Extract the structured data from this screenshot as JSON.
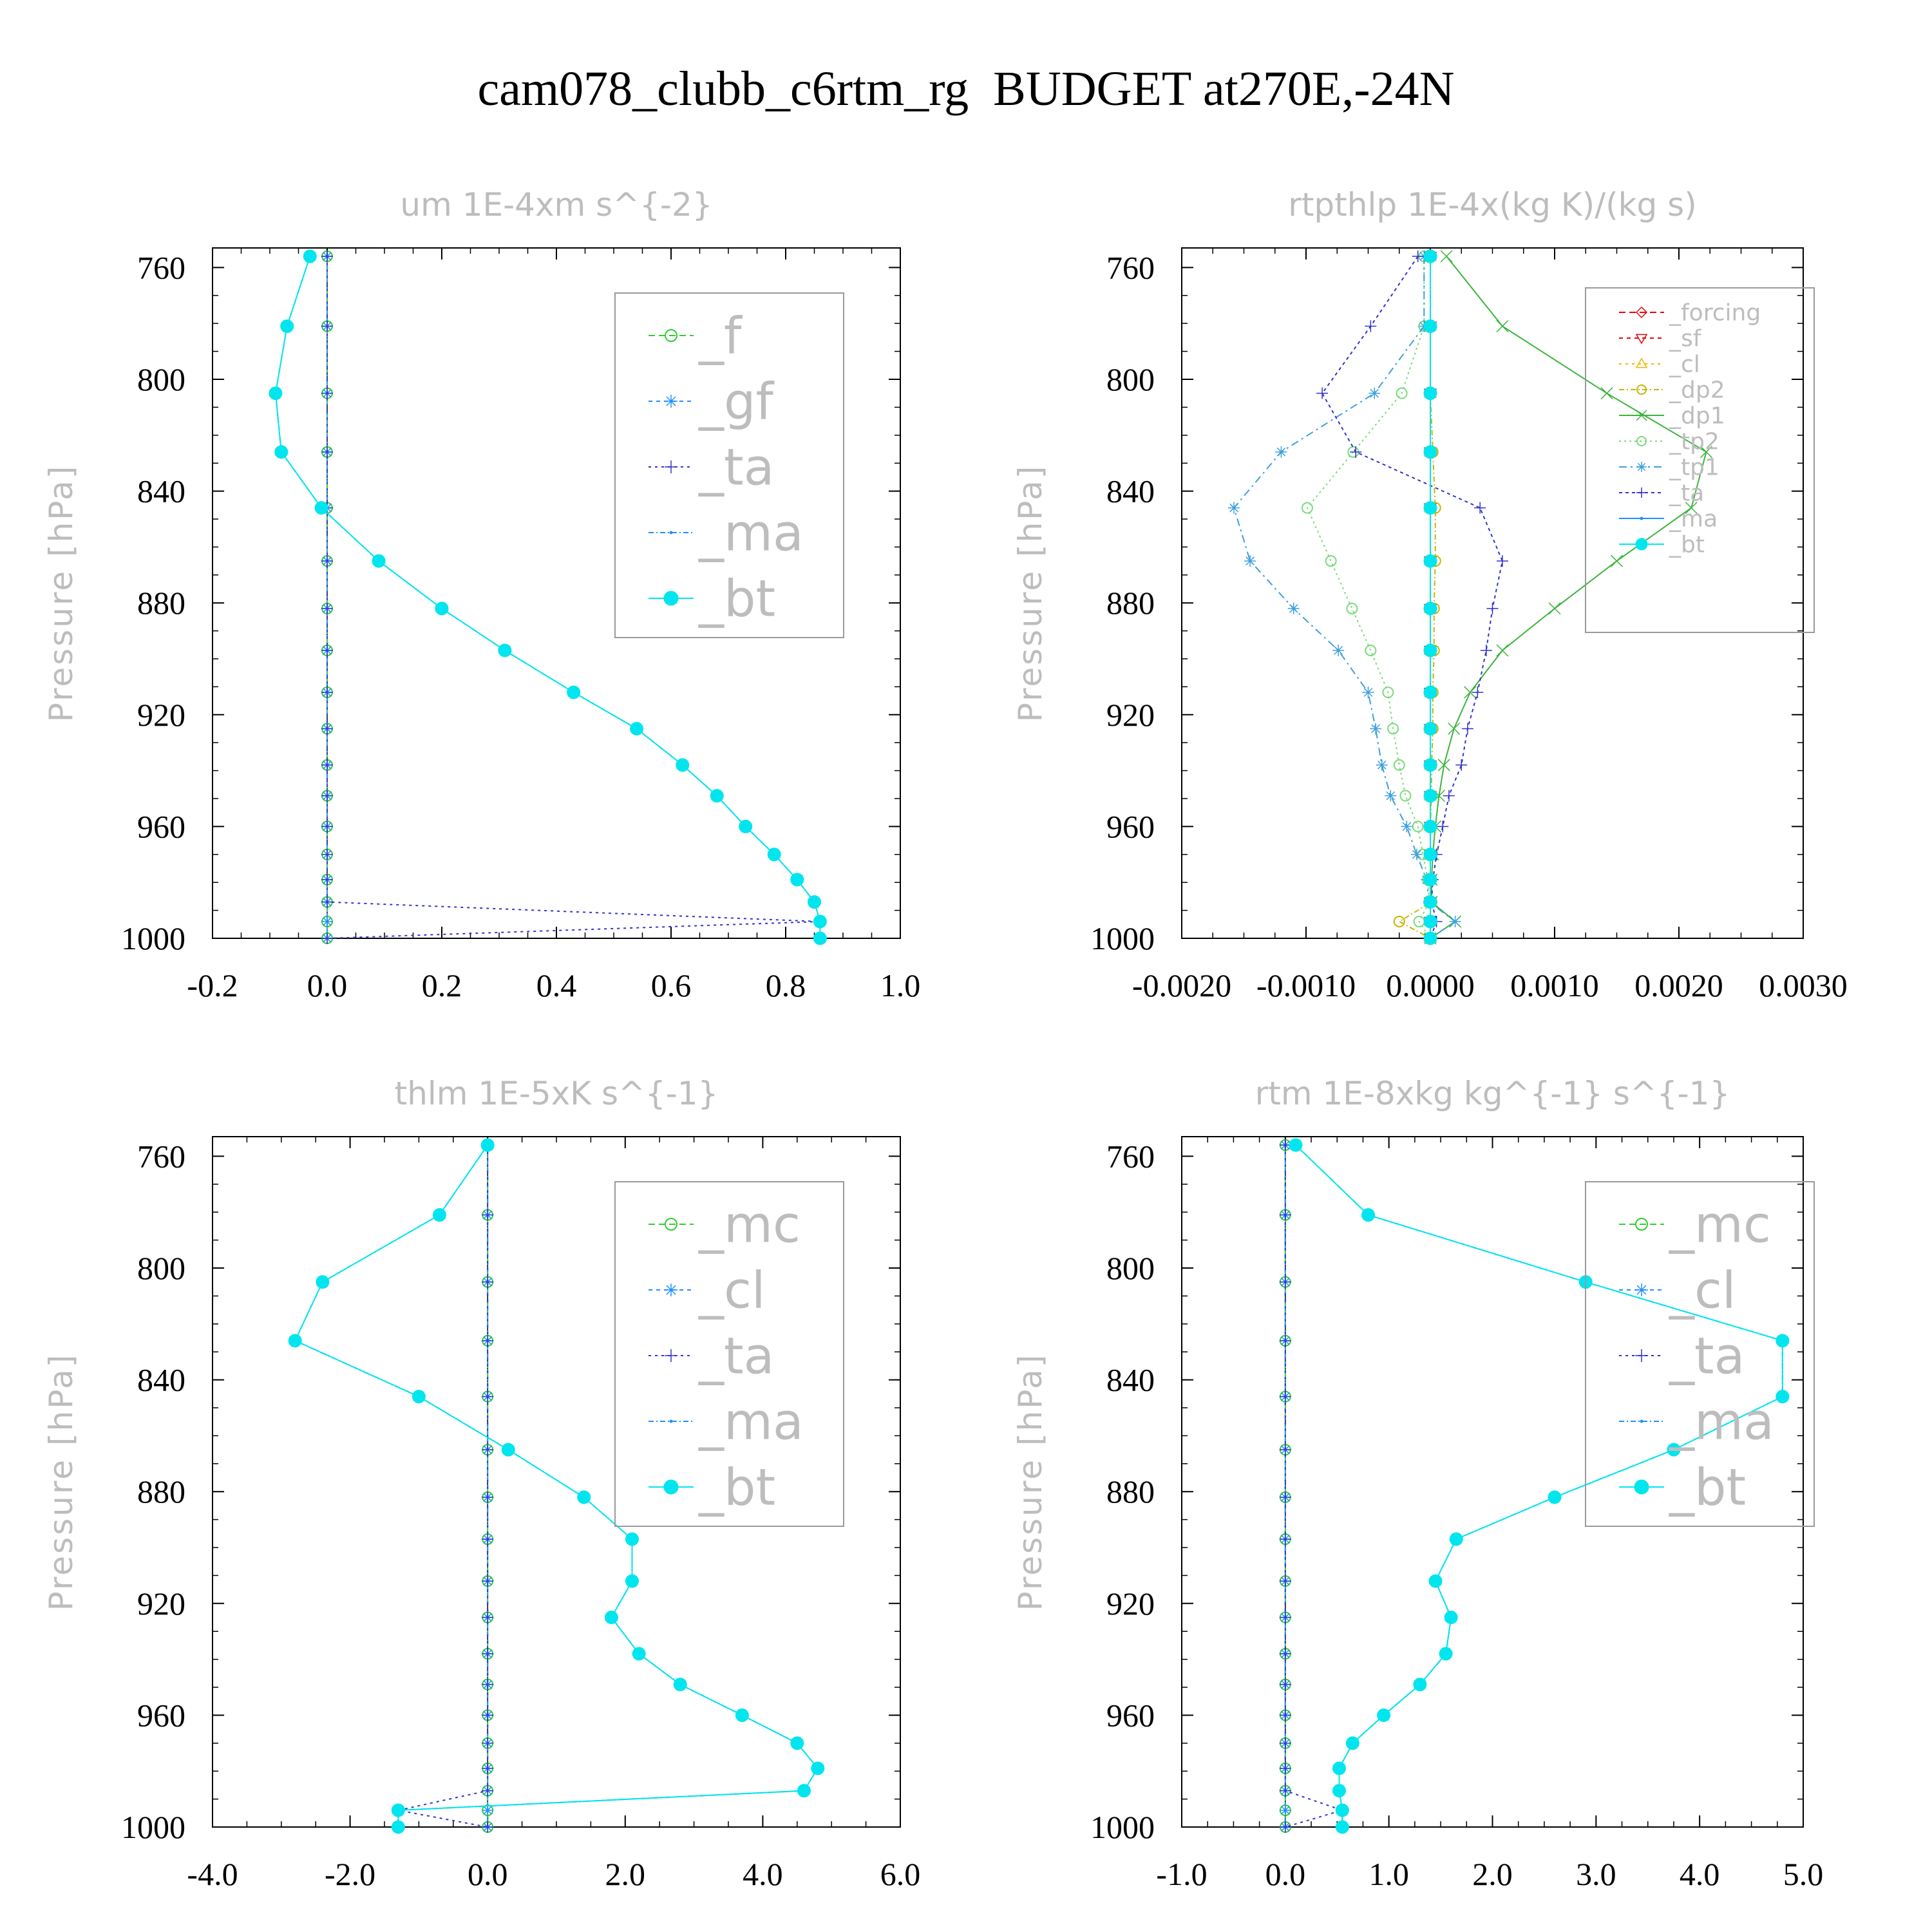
{
  "title": "cam078_clubb_c6rtm_rg  BUDGET at270E,-24N",
  "chart_data": [
    {
      "type": "line",
      "title": "um  1E-4xm s^{-2}",
      "ylabel": "Pressure [hPa]",
      "xlabel": "",
      "xlim": [
        -0.2,
        1.0
      ],
      "ylim": [
        1000,
        753
      ],
      "y_inverted": true,
      "xticks": [
        "-0.2",
        "0.0",
        "0.2",
        "0.4",
        "0.6",
        "0.8",
        "1.0"
      ],
      "yticks": [
        "760",
        "800",
        "840",
        "880",
        "920",
        "960",
        "1000"
      ],
      "legend_position": "top-right",
      "y": [
        756,
        781,
        805,
        826,
        846,
        865,
        882,
        897,
        912,
        925,
        938,
        949,
        960,
        970,
        979,
        987,
        994,
        1000
      ],
      "series": [
        {
          "name": "_f",
          "color": "#32cd32",
          "marker": "circle",
          "values": [
            0,
            0,
            0,
            0,
            0,
            0,
            0,
            0,
            0,
            0,
            0,
            0,
            0,
            0,
            0,
            0,
            0,
            0
          ]
        },
        {
          "name": "_gf",
          "color": "#1e90ff",
          "marker": "asterisk",
          "values": [
            0,
            0,
            0,
            0,
            0,
            0,
            0,
            0,
            0,
            0,
            0,
            0,
            0,
            0,
            0,
            0,
            0,
            0
          ]
        },
        {
          "name": "_ta",
          "color": "#3232cd",
          "marker": "plus",
          "values": [
            0,
            0,
            0,
            0,
            0,
            0,
            0,
            0,
            0,
            0,
            0,
            0,
            0,
            0,
            0,
            0,
            0.86,
            0
          ]
        },
        {
          "name": "_ma",
          "color": "#1e90ff",
          "marker": "dot",
          "values": [
            -0.03,
            -0.07,
            -0.09,
            -0.08,
            -0.01,
            0.09,
            0.2,
            0.31,
            0.43,
            0.54,
            0.62,
            0.68,
            0.73,
            0.78,
            0.82,
            0.85,
            0.86,
            0.86
          ]
        },
        {
          "name": "_bt",
          "color": "#00e5ee",
          "marker": "filled",
          "values": [
            -0.03,
            -0.07,
            -0.09,
            -0.08,
            -0.01,
            0.09,
            0.2,
            0.31,
            0.43,
            0.54,
            0.62,
            0.68,
            0.73,
            0.78,
            0.82,
            0.85,
            0.86,
            0.86
          ]
        }
      ]
    },
    {
      "type": "line",
      "title": "rtpthlp  1E-4x(kg K)/(kg s)",
      "ylabel": "Pressure [hPa]",
      "xlabel": "",
      "xlim": [
        -0.002,
        0.003
      ],
      "ylim": [
        1000,
        753
      ],
      "y_inverted": true,
      "xticks": [
        "-0.0020",
        "-0.0010",
        "0.0000",
        "0.0010",
        "0.0020",
        "0.0030"
      ],
      "yticks": [
        "760",
        "800",
        "840",
        "880",
        "920",
        "960",
        "1000"
      ],
      "legend_position": "top-right",
      "y": [
        756,
        781,
        805,
        826,
        846,
        865,
        882,
        897,
        912,
        925,
        938,
        949,
        960,
        970,
        979,
        987,
        994,
        1000
      ],
      "series": [
        {
          "name": "_forcing",
          "color": "#e8000b",
          "marker": "diamond",
          "values": [
            0,
            0,
            0,
            0,
            0,
            0,
            0,
            0,
            0,
            0,
            0,
            0,
            0,
            0,
            0,
            0,
            0,
            0
          ]
        },
        {
          "name": "_sf",
          "color": "#e8000b",
          "marker": "tri-down",
          "values": [
            0,
            0,
            0,
            0,
            0,
            0,
            0,
            0,
            0,
            0,
            0,
            0,
            0,
            0,
            0,
            0,
            0,
            0
          ]
        },
        {
          "name": "_cl",
          "color": "#f0b400",
          "marker": "tri-up",
          "values": [
            0,
            0,
            0,
            0,
            0,
            0,
            0,
            0,
            0,
            0,
            0,
            0,
            0,
            0,
            0,
            0,
            0,
            0
          ]
        },
        {
          "name": "_dp2",
          "color": "#c8b400",
          "marker": "circle",
          "values": [
            0,
            0,
            0,
            2e-05,
            4e-05,
            4e-05,
            3e-05,
            3e-05,
            2e-05,
            2e-05,
            1e-05,
            1e-05,
            0,
            0,
            0,
            1e-05,
            -0.00025,
            0
          ]
        },
        {
          "name": "_dp1",
          "color": "#3cb43c",
          "marker": "x",
          "values": [
            0.00013,
            0.00058,
            0.00142,
            0.00222,
            0.0021,
            0.0015,
            0.001,
            0.00058,
            0.00032,
            0.00019,
            0.00011,
            7e-05,
            4e-05,
            2e-05,
            1e-05,
            1e-05,
            0.0002,
            0
          ]
        },
        {
          "name": "_tp2",
          "color": "#78dc78",
          "marker": "circle",
          "values": [
            -5e-05,
            -5e-05,
            -0.00023,
            -0.00062,
            -0.00099,
            -0.0008,
            -0.00063,
            -0.00048,
            -0.00034,
            -0.0003,
            -0.00025,
            -0.0002,
            -0.0001,
            -6e-05,
            -2e-05,
            -1e-05,
            -9e-05,
            0
          ]
        },
        {
          "name": "_tp1",
          "color": "#3ca0dc",
          "marker": "asterisk",
          "values": [
            -5e-05,
            -5e-05,
            -0.00045,
            -0.0012,
            -0.00158,
            -0.00145,
            -0.0011,
            -0.00074,
            -0.0005,
            -0.00044,
            -0.00039,
            -0.00032,
            -0.00019,
            -0.00011,
            -3e-05,
            -1e-05,
            0.0002,
            0
          ]
        },
        {
          "name": "_ta",
          "color": "#3232cd",
          "marker": "plus",
          "values": [
            -0.0001,
            -0.00048,
            -0.00087,
            -0.0006,
            0.0004,
            0.00058,
            0.0005,
            0.00045,
            0.00038,
            0.0003,
            0.00025,
            0.00015,
            0.0001,
            5e-05,
            2e-05,
            1e-05,
            5e-05,
            0
          ]
        },
        {
          "name": "_ma",
          "color": "#1e90ff",
          "marker": "dot",
          "values": [
            0,
            0,
            0,
            0,
            0,
            0,
            0,
            0,
            0,
            0,
            0,
            0,
            0,
            0,
            0,
            0,
            0,
            0
          ]
        },
        {
          "name": "_bt",
          "color": "#00e5ee",
          "marker": "filled",
          "values": [
            0,
            0,
            0,
            0,
            0,
            0,
            0,
            0,
            0,
            0,
            0,
            0,
            0,
            0,
            0,
            0,
            0,
            0
          ]
        }
      ]
    },
    {
      "type": "line",
      "title": "thlm  1E-5xK s^{-1}",
      "ylabel": "Pressure [hPa]",
      "xlabel": "",
      "xlim": [
        -4.0,
        6.0
      ],
      "ylim": [
        1000,
        753
      ],
      "y_inverted": true,
      "xticks": [
        "-4.0",
        "-2.0",
        "0.0",
        "2.0",
        "4.0",
        "6.0"
      ],
      "yticks": [
        "760",
        "800",
        "840",
        "880",
        "920",
        "960",
        "1000"
      ],
      "legend_position": "top-right",
      "y": [
        756,
        781,
        805,
        826,
        846,
        865,
        882,
        897,
        912,
        925,
        938,
        949,
        960,
        970,
        979,
        987,
        994,
        1000
      ],
      "series": [
        {
          "name": "_mc",
          "color": "#32cd32",
          "marker": "circle",
          "values": [
            0,
            0,
            0,
            0,
            0,
            0,
            0,
            0,
            0,
            0,
            0,
            0,
            0,
            0,
            0,
            0,
            0,
            0
          ]
        },
        {
          "name": "_cl",
          "color": "#1e90ff",
          "marker": "asterisk",
          "values": [
            0,
            0,
            0,
            0,
            0,
            0,
            0,
            0,
            0,
            0,
            0,
            0,
            0,
            0,
            0,
            0,
            0,
            0
          ]
        },
        {
          "name": "_ta",
          "color": "#3232cd",
          "marker": "plus",
          "values": [
            0,
            0,
            0,
            0,
            0,
            0,
            0,
            0,
            0,
            0,
            0,
            0,
            0,
            0,
            0,
            0,
            -1.3,
            0
          ]
        },
        {
          "name": "_ma",
          "color": "#1e90ff",
          "marker": "dot",
          "values": [
            0,
            -0.7,
            -2.4,
            -2.8,
            -1.0,
            0.3,
            1.4,
            2.1,
            2.1,
            1.8,
            2.2,
            2.8,
            3.7,
            4.5,
            4.8,
            4.6,
            -1.3,
            -1.3
          ]
        },
        {
          "name": "_bt",
          "color": "#00e5ee",
          "marker": "filled",
          "values": [
            0,
            -0.7,
            -2.4,
            -2.8,
            -1.0,
            0.3,
            1.4,
            2.1,
            2.1,
            1.8,
            2.2,
            2.8,
            3.7,
            4.5,
            4.8,
            4.6,
            -1.3,
            -1.3
          ]
        }
      ]
    },
    {
      "type": "line",
      "title": "rtm  1E-8xkg kg^{-1} s^{-1}",
      "ylabel": "Pressure [hPa]",
      "xlabel": "",
      "xlim": [
        -1.0,
        5.0
      ],
      "ylim": [
        1000,
        753
      ],
      "y_inverted": true,
      "xticks": [
        "-1.0",
        "0.0",
        "1.0",
        "2.0",
        "3.0",
        "4.0",
        "5.0"
      ],
      "yticks": [
        "760",
        "800",
        "840",
        "880",
        "920",
        "960",
        "1000"
      ],
      "legend_position": "top-right",
      "y": [
        756,
        781,
        805,
        826,
        846,
        865,
        882,
        897,
        912,
        925,
        938,
        949,
        960,
        970,
        979,
        987,
        994,
        1000
      ],
      "series": [
        {
          "name": "_mc",
          "color": "#32cd32",
          "marker": "circle",
          "values": [
            0,
            0,
            0,
            0,
            0,
            0,
            0,
            0,
            0,
            0,
            0,
            0,
            0,
            0,
            0,
            0,
            0,
            0
          ]
        },
        {
          "name": "_cl",
          "color": "#1e90ff",
          "marker": "asterisk",
          "values": [
            0,
            0,
            0,
            0,
            0,
            0,
            0,
            0,
            0,
            0,
            0,
            0,
            0,
            0,
            0,
            0,
            0,
            0
          ]
        },
        {
          "name": "_ta",
          "color": "#3232cd",
          "marker": "plus",
          "values": [
            0,
            0,
            0,
            0,
            0,
            0,
            0,
            0,
            0,
            0,
            0,
            0,
            0,
            0,
            0,
            0,
            0.55,
            0
          ]
        },
        {
          "name": "_ma",
          "color": "#1e90ff",
          "marker": "dot",
          "values": [
            0.1,
            0.8,
            2.9,
            4.8,
            4.8,
            3.75,
            2.6,
            1.65,
            1.45,
            1.6,
            1.55,
            1.3,
            0.95,
            0.65,
            0.52,
            0.52,
            0.55,
            0.55
          ]
        },
        {
          "name": "_bt",
          "color": "#00e5ee",
          "marker": "filled",
          "values": [
            0.1,
            0.8,
            2.9,
            4.8,
            4.8,
            3.75,
            2.6,
            1.65,
            1.45,
            1.6,
            1.55,
            1.3,
            0.95,
            0.65,
            0.52,
            0.52,
            0.55,
            0.55
          ]
        }
      ]
    }
  ]
}
